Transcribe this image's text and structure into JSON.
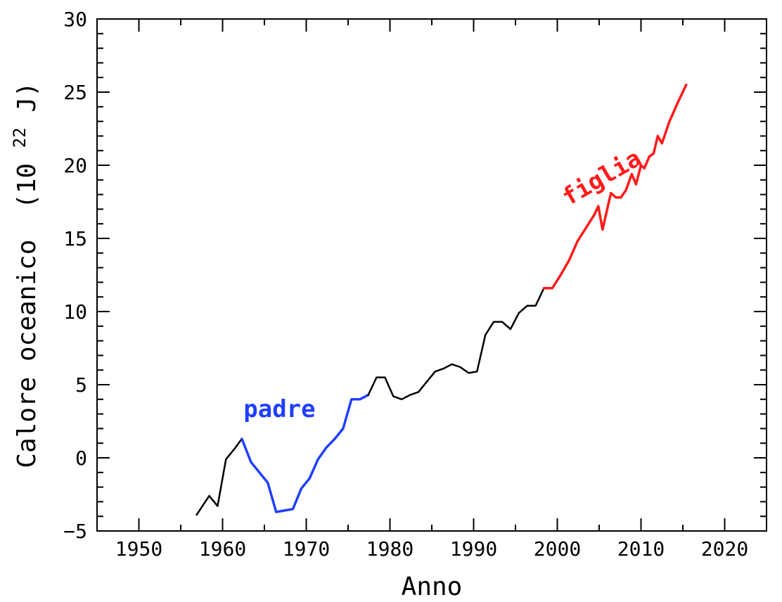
{
  "chart_data": {
    "type": "line",
    "xlabel": "Anno",
    "ylabel": "Calore oceanico",
    "ylabel_unit": {
      "open": "(10",
      "exp": "22",
      "close": " J)"
    },
    "xlim": [
      1945,
      2025
    ],
    "ylim": [
      -5,
      30
    ],
    "xticks": [
      1950,
      1960,
      1970,
      1980,
      1990,
      2000,
      2010,
      2020
    ],
    "yticks": [
      -5,
      0,
      5,
      10,
      15,
      20,
      25,
      30
    ],
    "grid": false,
    "colors": {
      "default": "#000000",
      "padre": "#1f3fff",
      "figlia": "#ff1a1a"
    },
    "annotations": [
      {
        "text": "padre",
        "x": 1962.5,
        "y": 2.8,
        "color": "#1f3fff",
        "rotate": 0
      },
      {
        "text": "figlia",
        "x": 2001.3,
        "y": 17.2,
        "color": "#ff1a1a",
        "rotate": -30
      }
    ],
    "series": [
      {
        "color": "#000000",
        "x": [
          1956.9,
          1958.4,
          1959.4,
          1960.4,
          1961.4,
          1962.3
        ],
        "y": [
          -3.9,
          -2.6,
          -3.3,
          -0.1,
          0.6,
          1.3
        ]
      },
      {
        "color": "#1f3fff",
        "x": [
          1962.3,
          1963.4,
          1964.4,
          1965.4,
          1966.4,
          1967.4,
          1968.4,
          1969.4,
          1970.4,
          1971.4,
          1972.4,
          1973.4,
          1974.4,
          1975.4,
          1976.4,
          1977.4
        ],
        "y": [
          1.3,
          -0.3,
          -1.0,
          -1.7,
          -3.7,
          -3.6,
          -3.5,
          -2.1,
          -1.4,
          -0.1,
          0.7,
          1.3,
          2.0,
          4.0,
          4.0,
          4.3
        ]
      },
      {
        "color": "#000000",
        "x": [
          1977.4,
          1978.4,
          1979.4,
          1980.4,
          1981.4,
          1982.4,
          1983.4,
          1984.4,
          1985.4,
          1986.4,
          1987.4,
          1988.4,
          1989.4,
          1990.4,
          1991.4,
          1992.4,
          1993.4,
          1994.4,
          1995.4,
          1996.4,
          1997.4,
          1998.4
        ],
        "y": [
          4.3,
          5.5,
          5.5,
          4.2,
          4.0,
          4.3,
          4.5,
          5.2,
          5.9,
          6.1,
          6.4,
          6.2,
          5.8,
          5.9,
          8.4,
          9.3,
          9.3,
          8.8,
          9.9,
          10.4,
          10.4,
          11.6
        ]
      },
      {
        "color": "#ff1a1a",
        "x": [
          1998.4,
          1999.4,
          2000.4,
          2001.4,
          2002.4,
          2003.4,
          2004.4,
          2004.9,
          2005.4,
          2006.4,
          2007.0,
          2007.6,
          2008.2,
          2008.9,
          2009.4,
          2010.0,
          2010.4,
          2011.0,
          2011.5,
          2012.0,
          2012.5,
          2013.4,
          2014.4,
          2015.4
        ],
        "y": [
          11.6,
          11.6,
          12.5,
          13.5,
          14.8,
          15.7,
          16.6,
          17.2,
          15.6,
          18.1,
          17.8,
          17.8,
          18.3,
          19.4,
          18.7,
          20.0,
          19.8,
          20.6,
          20.8,
          22.0,
          21.5,
          23.0,
          24.3,
          25.5
        ]
      }
    ]
  }
}
